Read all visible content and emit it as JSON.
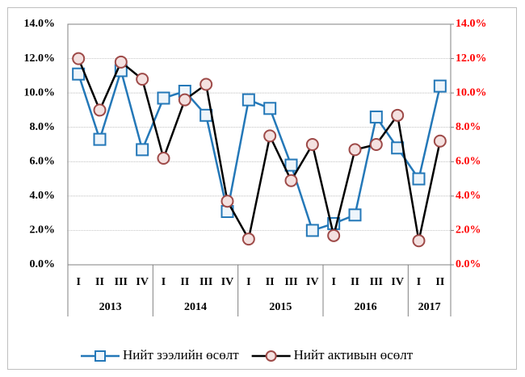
{
  "chart_data": {
    "type": "line",
    "groups": [
      {
        "name": "2013",
        "categories": [
          "I",
          "II",
          "III",
          "IV"
        ]
      },
      {
        "name": "2014",
        "categories": [
          "I",
          "II",
          "III",
          "IV"
        ]
      },
      {
        "name": "2015",
        "categories": [
          "I",
          "II",
          "III",
          "IV"
        ]
      },
      {
        "name": "2016",
        "categories": [
          "I",
          "II",
          "III",
          "IV"
        ]
      },
      {
        "name": "2017",
        "categories": [
          "I",
          "II"
        ]
      }
    ],
    "series": [
      {
        "name": "Нийт зээлийн өсөлт",
        "color": "#2478b8",
        "marker": "square",
        "marker_fill": "#eef5fb",
        "values": [
          11.1,
          7.3,
          11.3,
          6.7,
          9.7,
          10.1,
          8.7,
          3.1,
          9.6,
          9.1,
          5.8,
          2.0,
          2.4,
          2.9,
          8.6,
          6.8,
          5.0,
          10.4
        ]
      },
      {
        "name": "Нийт активын өсөлт",
        "color": "#000000",
        "marker": "circle",
        "marker_color": "#9e4a48",
        "marker_fill": "#f4e1e0",
        "axis": "y2",
        "values": [
          12.0,
          9.0,
          11.8,
          10.8,
          6.2,
          9.6,
          10.5,
          3.7,
          1.5,
          7.5,
          4.9,
          7.0,
          1.7,
          6.7,
          7.0,
          8.7,
          1.4,
          7.2
        ]
      }
    ],
    "ylim": [
      0,
      14
    ],
    "yticks": [
      {
        "value": 0,
        "label": "0.0%"
      },
      {
        "value": 2,
        "label": "2.0%"
      },
      {
        "value": 4,
        "label": "4.0%"
      },
      {
        "value": 6,
        "label": "6.0%"
      },
      {
        "value": 8,
        "label": "8.0%"
      },
      {
        "value": 10,
        "label": "10.0%"
      },
      {
        "value": 12,
        "label": "12.0%"
      },
      {
        "value": 14,
        "label": "14.0%"
      }
    ],
    "y2lim": [
      0,
      14
    ],
    "y2ticks": [
      {
        "value": 0,
        "label": "0.0%"
      },
      {
        "value": 2,
        "label": "2.0%"
      },
      {
        "value": 4,
        "label": "4.0%"
      },
      {
        "value": 6,
        "label": "6.0%"
      },
      {
        "value": 8,
        "label": "8.0%"
      },
      {
        "value": 10,
        "label": "10.0%"
      },
      {
        "value": 12,
        "label": "12.0%"
      },
      {
        "value": 14,
        "label": "14.0%"
      }
    ],
    "y2tick_color": "#ff0000",
    "grid": true,
    "legend": "bottom"
  }
}
